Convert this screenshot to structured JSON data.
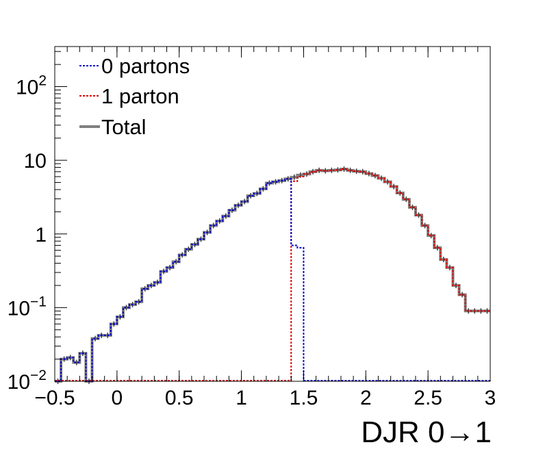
{
  "chart_data": {
    "type": "line",
    "xlabel": "DJR 0→1",
    "ylabel": "",
    "log_y": true,
    "xlim": [
      -0.5,
      3.0
    ],
    "ylim": [
      0.01,
      350
    ],
    "x_ticks": [
      -0.5,
      0,
      0.5,
      1,
      1.5,
      2,
      2.5,
      3
    ],
    "x_tick_labels": [
      "−0.5",
      "0",
      "0.5",
      "1",
      "1.5",
      "2",
      "2.5",
      "3"
    ],
    "y_ticks": [
      {
        "value": 0.01,
        "base": "10",
        "exp": "−2"
      },
      {
        "value": 0.1,
        "base": "10",
        "exp": "−1"
      },
      {
        "value": 1,
        "base": "1",
        "exp": ""
      },
      {
        "value": 10,
        "base": "10",
        "exp": ""
      },
      {
        "value": 100,
        "base": "10",
        "exp": "2"
      }
    ],
    "grid": false,
    "legend_position": "top-left",
    "bin_width": 0.05,
    "series": [
      {
        "name": "0 partons",
        "color": "#0000cc",
        "style": "dotted",
        "x": [
          -0.5,
          -0.45,
          -0.4,
          -0.35,
          -0.3,
          -0.25,
          -0.2,
          -0.15,
          -0.1,
          -0.05,
          0.0,
          0.05,
          0.1,
          0.15,
          0.2,
          0.25,
          0.3,
          0.35,
          0.4,
          0.45,
          0.5,
          0.55,
          0.6,
          0.65,
          0.7,
          0.75,
          0.8,
          0.85,
          0.9,
          0.95,
          1.0,
          1.05,
          1.1,
          1.15,
          1.2,
          1.25,
          1.3,
          1.35,
          1.4,
          1.45
        ],
        "values": [
          0.01,
          0.02,
          0.021,
          0.018,
          0.024,
          0.01,
          0.038,
          0.042,
          0.042,
          0.06,
          0.075,
          0.1,
          0.11,
          0.12,
          0.18,
          0.2,
          0.22,
          0.31,
          0.35,
          0.42,
          0.52,
          0.62,
          0.72,
          0.85,
          1.05,
          1.3,
          1.5,
          1.75,
          2.1,
          2.45,
          2.75,
          3.3,
          3.55,
          4.1,
          4.9,
          5.1,
          5.3,
          5.6,
          0.7,
          0.65
        ]
      },
      {
        "name": "1 parton",
        "color": "#dd0000",
        "style": "dotted",
        "x": [
          1.4,
          1.45,
          1.5,
          1.55,
          1.6,
          1.65,
          1.7,
          1.75,
          1.8,
          1.85,
          1.9,
          1.95,
          2.0,
          2.05,
          2.1,
          2.15,
          2.2,
          2.25,
          2.3,
          2.35,
          2.4,
          2.45,
          2.5,
          2.55,
          2.6,
          2.65,
          2.7,
          2.75,
          2.8,
          2.85,
          2.9,
          2.95
        ],
        "values": [
          5.2,
          6.0,
          6.5,
          7.0,
          7.3,
          7.2,
          7.3,
          7.4,
          7.6,
          7.3,
          7.1,
          7.0,
          6.6,
          6.2,
          5.7,
          5.1,
          4.4,
          3.6,
          2.95,
          2.3,
          1.8,
          1.3,
          0.95,
          0.65,
          0.45,
          0.35,
          0.2,
          0.15,
          0.09,
          0.09,
          0.09,
          0.09
        ]
      },
      {
        "name": "Total",
        "color": "#808080",
        "style": "solid",
        "x": [
          -0.5,
          -0.45,
          -0.4,
          -0.35,
          -0.3,
          -0.25,
          -0.2,
          -0.15,
          -0.1,
          -0.05,
          0.0,
          0.05,
          0.1,
          0.15,
          0.2,
          0.25,
          0.3,
          0.35,
          0.4,
          0.45,
          0.5,
          0.55,
          0.6,
          0.65,
          0.7,
          0.75,
          0.8,
          0.85,
          0.9,
          0.95,
          1.0,
          1.05,
          1.1,
          1.15,
          1.2,
          1.25,
          1.3,
          1.35,
          1.4,
          1.45,
          1.5,
          1.55,
          1.6,
          1.65,
          1.7,
          1.75,
          1.8,
          1.85,
          1.9,
          1.95,
          2.0,
          2.05,
          2.1,
          2.15,
          2.2,
          2.25,
          2.3,
          2.35,
          2.4,
          2.45,
          2.5,
          2.55,
          2.6,
          2.65,
          2.7,
          2.75,
          2.8,
          2.85,
          2.9,
          2.95
        ],
        "values": [
          0.01,
          0.02,
          0.021,
          0.018,
          0.024,
          0.01,
          0.038,
          0.042,
          0.042,
          0.06,
          0.075,
          0.1,
          0.11,
          0.12,
          0.18,
          0.2,
          0.22,
          0.31,
          0.35,
          0.42,
          0.52,
          0.62,
          0.72,
          0.85,
          1.05,
          1.3,
          1.5,
          1.75,
          2.1,
          2.45,
          2.75,
          3.3,
          3.55,
          4.1,
          4.9,
          5.1,
          5.3,
          5.6,
          5.9,
          6.3,
          6.5,
          7.0,
          7.3,
          7.2,
          7.3,
          7.4,
          7.6,
          7.3,
          7.1,
          7.0,
          6.6,
          6.2,
          5.7,
          5.1,
          4.4,
          3.6,
          2.95,
          2.3,
          1.8,
          1.3,
          0.95,
          0.65,
          0.45,
          0.35,
          0.2,
          0.15,
          0.09,
          0.09,
          0.09,
          0.09
        ]
      }
    ]
  }
}
